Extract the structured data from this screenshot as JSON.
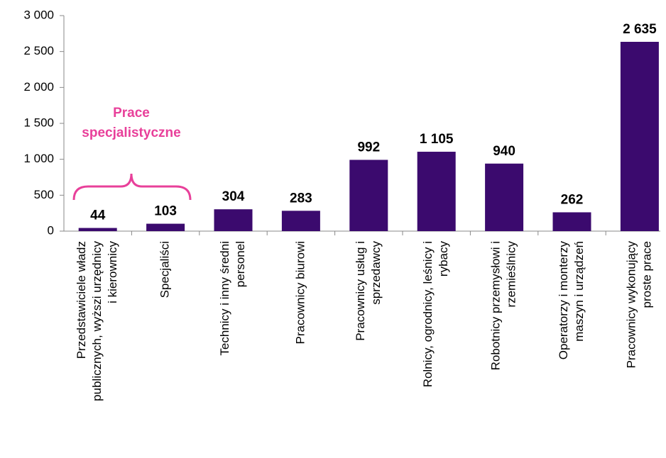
{
  "chart_data": {
    "type": "bar",
    "categories": [
      [
        "Przedstawiciele władz",
        "publicznych, wyższi urzędnicy",
        "i kierownicy"
      ],
      [
        "Specjaliści"
      ],
      [
        "Technicy i inny średni",
        "personel"
      ],
      [
        "Pracownicy biurowi"
      ],
      [
        "Pracownicy usług i",
        "sprzedawcy"
      ],
      [
        "Rolnicy, ogrodnicy, leśnicy i",
        "rybacy"
      ],
      [
        "Robotnicy przemysłowi i",
        "rzemieślnicy"
      ],
      [
        "Operatorzy i monterzy",
        "maszyn i urządzeń"
      ],
      [
        "Pracownicy wykonujący",
        "proste prace"
      ]
    ],
    "values": [
      44,
      103,
      304,
      283,
      992,
      1105,
      940,
      262,
      2635
    ],
    "value_labels": [
      "44",
      "103",
      "304",
      "283",
      "992",
      "1 105",
      "940",
      "262",
      "2 635"
    ],
    "color": "#3b0a6e",
    "ylim": [
      0,
      3000
    ],
    "yticks": [
      0,
      500,
      {
        "value": 1000,
        "label": "1 000"
      },
      {
        "value": 1500,
        "label": "1 500"
      },
      {
        "value": 2000,
        "label": "2 000"
      },
      {
        "value": 2500,
        "label": "2 500"
      },
      {
        "value": 3000,
        "label": "3 000"
      }
    ],
    "annotation": [
      "Prace",
      "specjalistyczne"
    ]
  }
}
